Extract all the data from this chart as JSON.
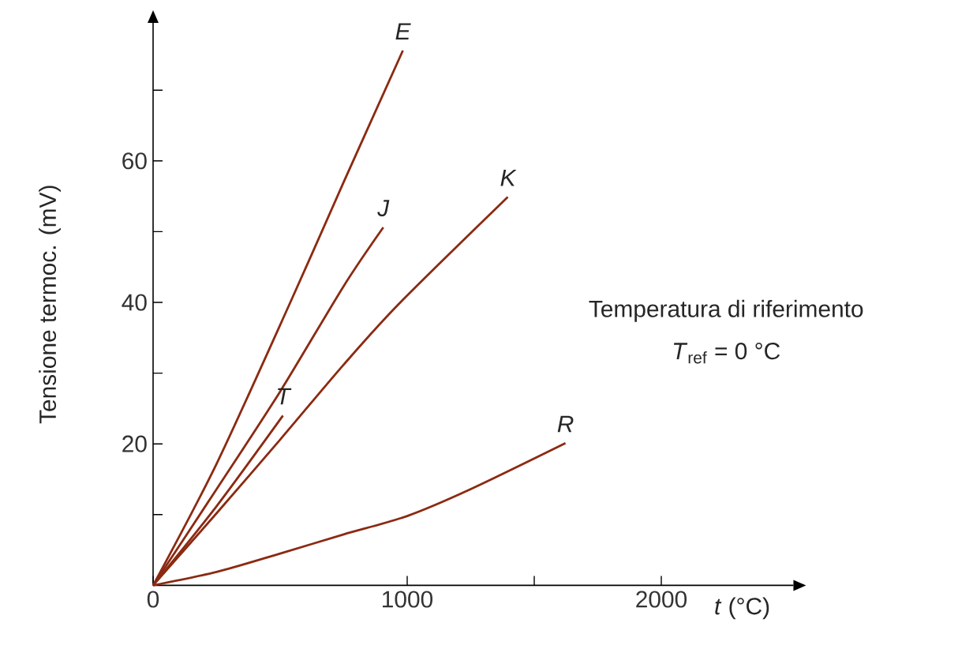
{
  "chart_data": {
    "type": "line",
    "xlabel": "*t* (°C)",
    "ylabel": "Tensione termoc. (mV)",
    "annotations": [
      "Temperatura di riferimento",
      "*T*$_{ref}$ = 0 °C"
    ],
    "xlim": [
      0,
      2520
    ],
    "ylim": [
      0,
      79.5
    ],
    "xticks": [
      0,
      1000,
      {
        "value": 1500,
        "label": null
      },
      2000
    ],
    "yticks": [
      {
        "value": 10,
        "label": null
      },
      20,
      {
        "value": 30,
        "label": null
      },
      40,
      {
        "value": 50,
        "label": null
      },
      60,
      {
        "value": 70,
        "label": null
      }
    ],
    "line_style": "solid",
    "series": [
      {
        "name": "E",
        "color": "#8b2a12",
        "x": [
          0,
          250,
          540,
          750,
          983
        ],
        "values": [
          0,
          17.2,
          40,
          57,
          75.6
        ]
      },
      {
        "name": "J",
        "color": "#8b2a12",
        "x": [
          0,
          250,
          500,
          750,
          906
        ],
        "values": [
          0,
          13.6,
          27.4,
          42.3,
          50.6
        ]
      },
      {
        "name": "T",
        "color": "#8b2a12",
        "x": [
          0,
          250,
          511
        ],
        "values": [
          0,
          11.2,
          24
        ]
      },
      {
        "name": "K",
        "color": "#8b2a12",
        "x": [
          0,
          250,
          500,
          750,
          973,
          1396
        ],
        "values": [
          0,
          10.2,
          20.6,
          31.2,
          40,
          54.9
        ]
      },
      {
        "name": "R",
        "color": "#8b2a12",
        "x": [
          0,
          250,
          500,
          750,
          1000,
          1250,
          1623
        ],
        "values": [
          0,
          1.9,
          4.5,
          7.2,
          9.8,
          13.6,
          20.1
        ]
      }
    ]
  }
}
